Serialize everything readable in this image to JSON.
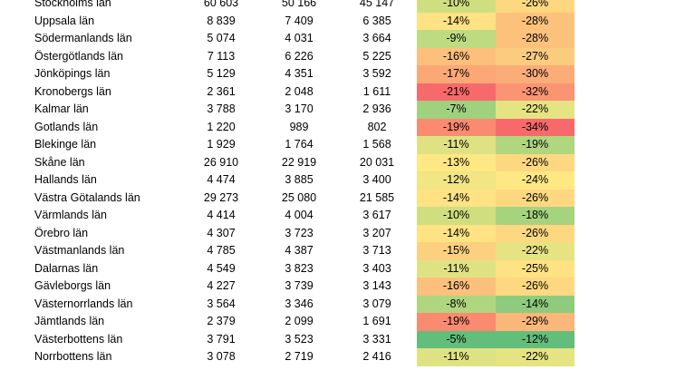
{
  "rows": [
    {
      "name": "Stockholms län",
      "v1": "60 603",
      "v2": "50 166",
      "v3": "45 147",
      "p1": "-10%",
      "p2": "-26%",
      "c1": "#cfdf80",
      "c2": "#fdd880"
    },
    {
      "name": "Uppsala län",
      "v1": "8 839",
      "v2": "7 409",
      "v3": "6 385",
      "p1": "-14%",
      "p2": "-28%",
      "c1": "#fee283",
      "c2": "#fcc27b"
    },
    {
      "name": "Södermanlands län",
      "v1": "5 074",
      "v2": "4 031",
      "v3": "3 664",
      "p1": "-9%",
      "p2": "-28%",
      "c1": "#bfdb81",
      "c2": "#fcc27b"
    },
    {
      "name": "Östergötlands län",
      "v1": "7 113",
      "v2": "6 226",
      "v3": "5 225",
      "p1": "-16%",
      "p2": "-27%",
      "c1": "#fdc07c",
      "c2": "#fccc7e"
    },
    {
      "name": "Jönköpings län",
      "v1": "5 129",
      "v2": "4 351",
      "v3": "3 592",
      "p1": "-17%",
      "p2": "-30%",
      "c1": "#fca876",
      "c2": "#fbac77"
    },
    {
      "name": "Kronobergs län",
      "v1": "2 361",
      "v2": "2 048",
      "v3": "1 611",
      "p1": "-21%",
      "p2": "-32%",
      "c1": "#f8696b",
      "c2": "#fa9472"
    },
    {
      "name": "Kalmar län",
      "v1": "3 788",
      "v2": "3 170",
      "v3": "2 936",
      "p1": "-7%",
      "p2": "-22%",
      "c1": "#9fd17f",
      "c2": "#e6e383"
    },
    {
      "name": "Gotlands län",
      "v1": "1 220",
      "v2": "989",
      "v3": "802",
      "p1": "-19%",
      "p2": "-34%",
      "c1": "#fa8a70",
      "c2": "#f8696b"
    },
    {
      "name": "Blekinge län",
      "v1": "1 929",
      "v2": "1 764",
      "v3": "1 568",
      "p1": "-11%",
      "p2": "-19%",
      "c1": "#dfe283",
      "c2": "#b1d67f"
    },
    {
      "name": "Skåne län",
      "v1": "26 910",
      "v2": "22 919",
      "v3": "20 031",
      "p1": "-13%",
      "p2": "-26%",
      "c1": "#fee884",
      "c2": "#fdd880"
    },
    {
      "name": "Hallands län",
      "v1": "4 474",
      "v2": "3 885",
      "v3": "3 400",
      "p1": "-12%",
      "p2": "-24%",
      "c1": "#f1e584",
      "c2": "#fee884"
    },
    {
      "name": "Västra Götalands län",
      "v1": "29 273",
      "v2": "25 080",
      "v3": "21 585",
      "p1": "-14%",
      "p2": "-26%",
      "c1": "#fee283",
      "c2": "#fdd880"
    },
    {
      "name": "Värmlands län",
      "v1": "4 414",
      "v2": "4 004",
      "v3": "3 617",
      "p1": "-10%",
      "p2": "-18%",
      "c1": "#cfdf80",
      "c2": "#a7d37f"
    },
    {
      "name": "Örebro län",
      "v1": "4 307",
      "v2": "3 723",
      "v3": "3 207",
      "p1": "-14%",
      "p2": "-26%",
      "c1": "#fee283",
      "c2": "#fdd880"
    },
    {
      "name": "Västmanlands län",
      "v1": "4 785",
      "v2": "4 387",
      "v3": "3 713",
      "p1": "-15%",
      "p2": "-22%",
      "c1": "#fdd07f",
      "c2": "#e6e383"
    },
    {
      "name": "Dalarnas län",
      "v1": "4 549",
      "v2": "3 823",
      "v3": "3 403",
      "p1": "-11%",
      "p2": "-25%",
      "c1": "#dfe283",
      "c2": "#fee283"
    },
    {
      "name": "Gävleborgs län",
      "v1": "4 227",
      "v2": "3 739",
      "v3": "3 143",
      "p1": "-16%",
      "p2": "-26%",
      "c1": "#fdc07c",
      "c2": "#fdd880"
    },
    {
      "name": "Västernorrlands län",
      "v1": "3 564",
      "v2": "3 346",
      "v3": "3 079",
      "p1": "-8%",
      "p2": "-14%",
      "c1": "#afd67f",
      "c2": "#8fcb7e"
    },
    {
      "name": "Jämtlands län",
      "v1": "2 379",
      "v2": "2 099",
      "v3": "1 691",
      "p1": "-19%",
      "p2": "-29%",
      "c1": "#fa8a70",
      "c2": "#fbb679"
    },
    {
      "name": "Västerbottens län",
      "v1": "3 791",
      "v2": "3 523",
      "v3": "3 331",
      "p1": "-5%",
      "p2": "-12%",
      "c1": "#63be7b",
      "c2": "#63be7b"
    },
    {
      "name": "Norrbottens län",
      "v1": "3 078",
      "v2": "2 719",
      "v3": "2 416",
      "p1": "-11%",
      "p2": "-22%",
      "c1": "#dfe283",
      "c2": "#e6e383"
    }
  ]
}
